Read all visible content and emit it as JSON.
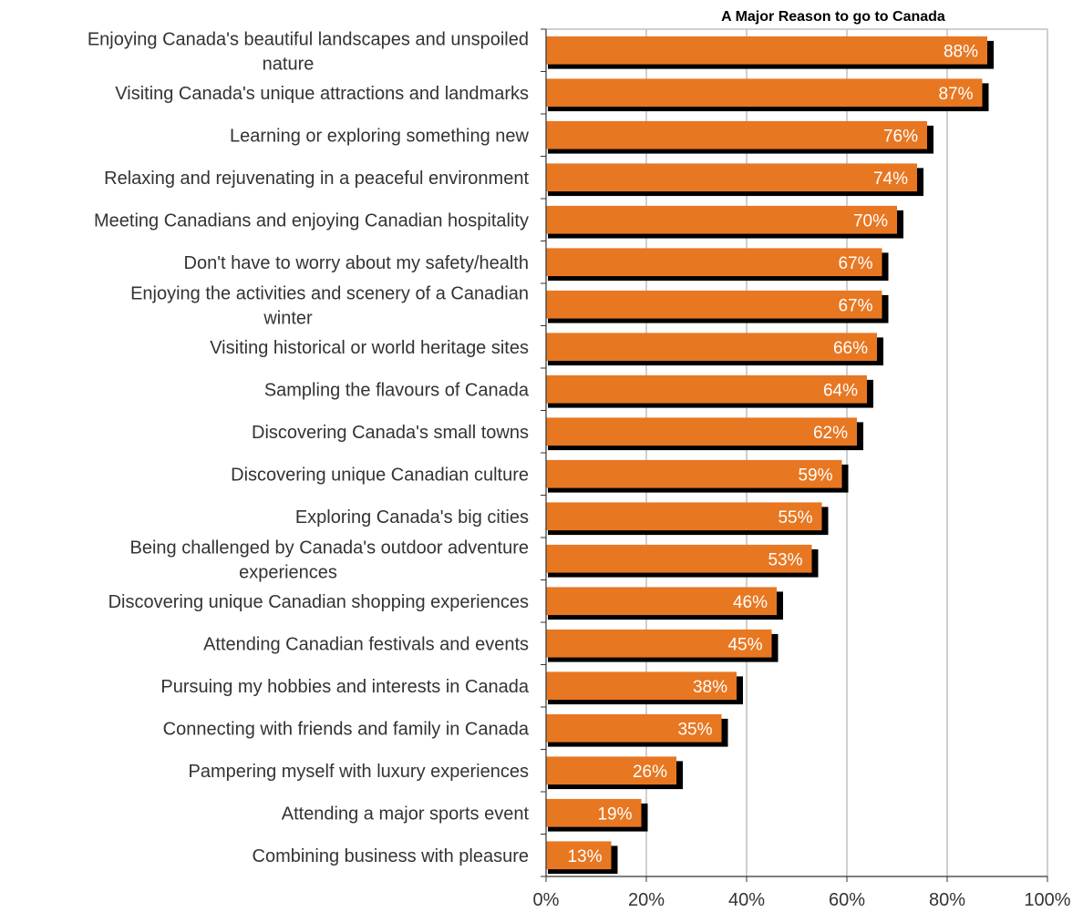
{
  "chart_data": {
    "type": "bar",
    "orientation": "horizontal",
    "title": "A Major Reason to go to Canada",
    "xlabel": "",
    "ylabel": "",
    "xlim": [
      0,
      100
    ],
    "x_ticks": [
      "0%",
      "20%",
      "40%",
      "60%",
      "80%",
      "100%"
    ],
    "grid": true,
    "bar_color": "#E87722",
    "shadow_color": "#000000",
    "gridline_color": "#BFBFBF",
    "categories": [
      "Enjoying Canada's beautiful landscapes and unspoiled nature",
      "Visiting Canada's unique attractions and landmarks",
      "Learning or exploring something new",
      "Relaxing and rejuvenating in a peaceful environment",
      "Meeting Canadians and enjoying Canadian hospitality",
      "Don't have to worry about my safety/health",
      "Enjoying the activities and scenery of a Canadian winter",
      "Visiting historical or world heritage sites",
      "Sampling the flavours of Canada",
      "Discovering Canada's small towns",
      "Discovering unique Canadian culture",
      "Exploring Canada's big cities",
      "Being challenged by Canada's outdoor adventure experiences",
      "Discovering unique Canadian shopping experiences",
      "Attending Canadian festivals and events",
      "Pursuing my hobbies and interests in Canada",
      "Connecting with friends and family in Canada",
      "Pampering myself with luxury experiences",
      "Attending a major sports event",
      "Combining business with pleasure"
    ],
    "values": [
      88,
      87,
      76,
      74,
      70,
      67,
      67,
      66,
      64,
      62,
      59,
      55,
      53,
      46,
      45,
      38,
      35,
      26,
      19,
      13
    ],
    "value_labels": [
      "88%",
      "87%",
      "76%",
      "74%",
      "70%",
      "67%",
      "67%",
      "66%",
      "64%",
      "62%",
      "59%",
      "55%",
      "53%",
      "46%",
      "45%",
      "38%",
      "35%",
      "26%",
      "19%",
      "13%"
    ]
  }
}
